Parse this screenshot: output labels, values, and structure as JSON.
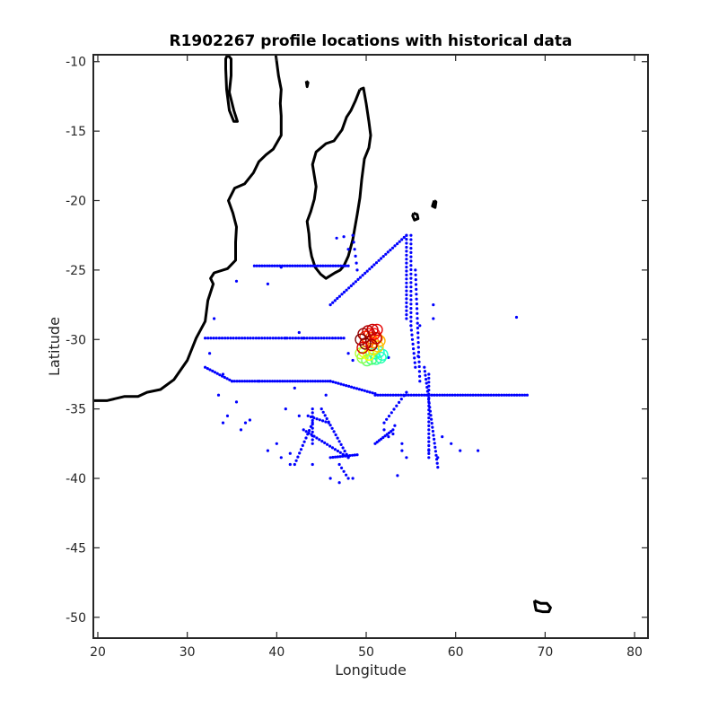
{
  "chart_data": {
    "type": "scatter",
    "title": "R1902267 profile locations with historical data",
    "xlabel": "Longitude",
    "ylabel": "Latitude",
    "xlim": [
      19.5,
      81.5
    ],
    "ylim": [
      -51.5,
      -9.5
    ],
    "xticks": [
      20,
      30,
      40,
      50,
      60,
      70,
      80
    ],
    "yticks": [
      -10,
      -15,
      -20,
      -25,
      -30,
      -35,
      -40,
      -45,
      -50
    ],
    "grid": false,
    "colors": {
      "historical": "#0000ff",
      "coast": "#000000",
      "profile_colormap": [
        "#00ffff",
        "#40ff80",
        "#ffff00",
        "#ff8000",
        "#ff0000",
        "#800000"
      ]
    },
    "coastline": [
      {
        "name": "africa",
        "points": [
          [
            19.5,
            -34.4
          ],
          [
            21,
            -34.4
          ],
          [
            23,
            -34.1
          ],
          [
            24.5,
            -34.1
          ],
          [
            25.5,
            -33.8
          ],
          [
            27,
            -33.6
          ],
          [
            28.5,
            -32.9
          ],
          [
            30,
            -31.5
          ],
          [
            31,
            -29.9
          ],
          [
            32,
            -28.7
          ],
          [
            32.3,
            -27.2
          ],
          [
            32.9,
            -26.0
          ],
          [
            32.6,
            -25.6
          ],
          [
            33,
            -25.2
          ],
          [
            34.5,
            -24.9
          ],
          [
            35.4,
            -24.3
          ],
          [
            35.4,
            -23.0
          ],
          [
            35.5,
            -21.9
          ],
          [
            35.1,
            -20.9
          ],
          [
            34.6,
            -20.0
          ],
          [
            35.3,
            -19.1
          ],
          [
            36.4,
            -18.8
          ],
          [
            37.4,
            -18.0
          ],
          [
            38.0,
            -17.2
          ],
          [
            38.8,
            -16.7
          ],
          [
            39.6,
            -16.3
          ],
          [
            40.5,
            -15.3
          ],
          [
            40.5,
            -13.9
          ],
          [
            40.4,
            -13.0
          ],
          [
            40.5,
            -12.0
          ],
          [
            40.2,
            -11.0
          ],
          [
            39.9,
            -9.5
          ]
        ]
      },
      {
        "name": "lake-malawi",
        "points": [
          [
            34.5,
            -9.5
          ],
          [
            34.9,
            -9.8
          ],
          [
            34.9,
            -11.0
          ],
          [
            34.7,
            -12.2
          ],
          [
            35.2,
            -13.5
          ],
          [
            35.6,
            -14.3
          ],
          [
            35.2,
            -14.3
          ],
          [
            34.7,
            -13.5
          ],
          [
            34.4,
            -12.0
          ],
          [
            34.3,
            -10.5
          ],
          [
            34.3,
            -9.8
          ],
          [
            34.5,
            -9.5
          ]
        ]
      },
      {
        "name": "madagascar",
        "points": [
          [
            49.3,
            -12.0
          ],
          [
            49.7,
            -11.9
          ],
          [
            50.0,
            -13.0
          ],
          [
            50.3,
            -14.3
          ],
          [
            50.5,
            -15.3
          ],
          [
            50.3,
            -16.2
          ],
          [
            49.8,
            -17.0
          ],
          [
            49.5,
            -18.5
          ],
          [
            49.3,
            -19.8
          ],
          [
            49.0,
            -21.0
          ],
          [
            48.5,
            -22.8
          ],
          [
            48.0,
            -24.0
          ],
          [
            47.5,
            -24.7
          ],
          [
            47.1,
            -25.0
          ],
          [
            46.5,
            -25.2
          ],
          [
            45.5,
            -25.6
          ],
          [
            44.9,
            -25.3
          ],
          [
            44.3,
            -24.8
          ],
          [
            43.9,
            -24.0
          ],
          [
            43.7,
            -23.3
          ],
          [
            43.6,
            -22.4
          ],
          [
            43.4,
            -21.5
          ],
          [
            43.8,
            -20.8
          ],
          [
            44.2,
            -19.9
          ],
          [
            44.4,
            -19.0
          ],
          [
            44.2,
            -18.2
          ],
          [
            44.0,
            -17.4
          ],
          [
            44.4,
            -16.5
          ],
          [
            45.5,
            -15.9
          ],
          [
            46.4,
            -15.7
          ],
          [
            47.3,
            -14.9
          ],
          [
            47.8,
            -14.0
          ],
          [
            48.3,
            -13.5
          ],
          [
            48.8,
            -12.8
          ],
          [
            49.3,
            -12.0
          ]
        ]
      },
      {
        "name": "comoros",
        "points": [
          [
            43.3,
            -11.4
          ],
          [
            43.5,
            -11.5
          ],
          [
            43.4,
            -11.8
          ],
          [
            43.3,
            -11.4
          ]
        ]
      },
      {
        "name": "reunion",
        "points": [
          [
            55.3,
            -20.9
          ],
          [
            55.7,
            -21.0
          ],
          [
            55.8,
            -21.3
          ],
          [
            55.4,
            -21.4
          ],
          [
            55.2,
            -21.1
          ],
          [
            55.3,
            -20.9
          ]
        ]
      },
      {
        "name": "mauritius",
        "points": [
          [
            57.6,
            -20.0
          ],
          [
            57.8,
            -20.1
          ],
          [
            57.7,
            -20.5
          ],
          [
            57.4,
            -20.4
          ],
          [
            57.6,
            -20.0
          ]
        ]
      },
      {
        "name": "kerguelen",
        "points": [
          [
            68.8,
            -48.8
          ],
          [
            69.5,
            -49.0
          ],
          [
            70.2,
            -49.0
          ],
          [
            70.6,
            -49.3
          ],
          [
            70.4,
            -49.6
          ],
          [
            69.7,
            -49.6
          ],
          [
            69.0,
            -49.5
          ],
          [
            68.9,
            -49.2
          ],
          [
            68.8,
            -48.8
          ]
        ]
      }
    ],
    "historical_tracks": [
      {
        "from": [
          37.5,
          -24.7
        ],
        "to": [
          48,
          -24.7
        ],
        "n": 38
      },
      {
        "from": [
          32,
          -29.9
        ],
        "to": [
          47.5,
          -29.9
        ],
        "n": 50
      },
      {
        "from": [
          32,
          -32
        ],
        "to": [
          35,
          -33
        ],
        "n": 12
      },
      {
        "from": [
          35,
          -33
        ],
        "to": [
          46,
          -33
        ],
        "n": 40
      },
      {
        "from": [
          46,
          -33
        ],
        "to": [
          51,
          -33.9
        ],
        "n": 18
      },
      {
        "from": [
          51,
          -34
        ],
        "to": [
          68,
          -34
        ],
        "n": 60
      },
      {
        "from": [
          46,
          -27.5
        ],
        "to": [
          54.5,
          -22.5
        ],
        "n": 34
      },
      {
        "from": [
          54.5,
          -22.5
        ],
        "to": [
          54.5,
          -28.5
        ],
        "n": 22
      },
      {
        "from": [
          55,
          -22.5
        ],
        "to": [
          55,
          -29
        ],
        "n": 22
      },
      {
        "from": [
          55.5,
          -25
        ],
        "to": [
          56,
          -33
        ],
        "n": 24
      },
      {
        "from": [
          56.5,
          -32
        ],
        "to": [
          58,
          -39.2
        ],
        "n": 26
      },
      {
        "from": [
          57,
          -32.5
        ],
        "to": [
          57,
          -38.5
        ],
        "n": 22
      },
      {
        "from": [
          52,
          -36
        ],
        "to": [
          54.5,
          -33.8
        ],
        "n": 10
      },
      {
        "from": [
          51,
          -37.5
        ],
        "to": [
          53,
          -36.5
        ],
        "n": 10
      },
      {
        "from": [
          48,
          -38.5
        ],
        "to": [
          45,
          -35
        ],
        "n": 16
      },
      {
        "from": [
          43,
          -36.5
        ],
        "to": [
          48,
          -38.5
        ],
        "n": 18
      },
      {
        "from": [
          46,
          -38.5
        ],
        "to": [
          49,
          -38.3
        ],
        "n": 12
      },
      {
        "from": [
          44,
          -36
        ],
        "to": [
          42,
          -39
        ],
        "n": 12
      },
      {
        "from": [
          44,
          -35
        ],
        "to": [
          44,
          -37.5
        ],
        "n": 10
      },
      {
        "from": [
          43.5,
          -35.5
        ],
        "to": [
          45.8,
          -36
        ],
        "n": 8
      },
      {
        "from": [
          47,
          -39
        ],
        "to": [
          48,
          -40
        ],
        "n": 5
      },
      {
        "from": [
          55,
          -29
        ],
        "to": [
          55.5,
          -32
        ],
        "n": 10
      },
      {
        "from": [
          48.5,
          -22.5
        ],
        "to": [
          49,
          -25
        ],
        "n": 6
      }
    ],
    "historical_points": [
      [
        35.5,
        -25.8
      ],
      [
        39,
        -26
      ],
      [
        48,
        -31
      ],
      [
        48.5,
        -31.5
      ],
      [
        52.5,
        -31.3
      ],
      [
        56,
        -29
      ],
      [
        57.5,
        -27.5
      ],
      [
        57.5,
        -28.5
      ],
      [
        66.8,
        -28.4
      ],
      [
        62.5,
        -38
      ],
      [
        60.5,
        -38
      ],
      [
        59.5,
        -37.5
      ],
      [
        58.5,
        -37
      ],
      [
        54,
        -37.5
      ],
      [
        54.5,
        -38.5
      ],
      [
        53,
        -36.8
      ],
      [
        53.2,
        -36.2
      ],
      [
        52.5,
        -37
      ],
      [
        48.5,
        -40
      ],
      [
        47,
        -40.3
      ],
      [
        46,
        -40
      ],
      [
        44,
        -39
      ],
      [
        41.5,
        -39
      ],
      [
        41.5,
        -38.2
      ],
      [
        40,
        -37.5
      ],
      [
        39,
        -38
      ],
      [
        37,
        -35.8
      ],
      [
        36.5,
        -36
      ],
      [
        35.5,
        -34.5
      ],
      [
        34.5,
        -35.5
      ],
      [
        34,
        -36
      ],
      [
        40.5,
        -38.5
      ],
      [
        42,
        -33.5
      ],
      [
        38,
        -33
      ],
      [
        33,
        -28.5
      ],
      [
        32.5,
        -31
      ],
      [
        34,
        -32.5
      ],
      [
        41,
        -35
      ],
      [
        42.5,
        -35.5
      ],
      [
        45.5,
        -34
      ],
      [
        53.5,
        -39.8
      ],
      [
        54,
        -38
      ],
      [
        57,
        -38
      ],
      [
        58,
        -38.5
      ],
      [
        33.5,
        -34
      ],
      [
        36,
        -36.5
      ],
      [
        40.5,
        -24.8
      ],
      [
        41,
        -29.9
      ],
      [
        42.5,
        -29.5
      ],
      [
        43,
        -29.9
      ],
      [
        48,
        -23.5
      ],
      [
        47.5,
        -22.6
      ],
      [
        46.7,
        -22.7
      ],
      [
        52,
        -36.5
      ],
      [
        55.8,
        -31.2
      ]
    ],
    "profile_points": [
      [
        50.9,
        -31.0,
        0.0
      ],
      [
        51.4,
        -30.9,
        0.04
      ],
      [
        51.8,
        -31.1,
        0.08
      ],
      [
        51.6,
        -31.3,
        0.12
      ],
      [
        51.1,
        -31.4,
        0.16
      ],
      [
        50.6,
        -31.4,
        0.2
      ],
      [
        50.1,
        -31.5,
        0.24
      ],
      [
        49.6,
        -31.3,
        0.28
      ],
      [
        49.4,
        -31.0,
        0.32
      ],
      [
        49.8,
        -30.9,
        0.36
      ],
      [
        50.3,
        -31.1,
        0.4
      ],
      [
        50.8,
        -30.7,
        0.44
      ],
      [
        51.3,
        -30.5,
        0.48
      ],
      [
        51.5,
        -30.1,
        0.52
      ],
      [
        51.2,
        -29.9,
        0.56
      ],
      [
        50.8,
        -30.2,
        0.6
      ],
      [
        50.5,
        -29.9,
        0.64
      ],
      [
        50.2,
        -30.2,
        0.68
      ],
      [
        49.9,
        -29.8,
        0.72
      ],
      [
        50.4,
        -29.6,
        0.76
      ],
      [
        50.9,
        -29.6,
        0.8
      ],
      [
        51.2,
        -29.3,
        0.84
      ],
      [
        50.7,
        -29.3,
        0.88
      ],
      [
        50.2,
        -29.4,
        0.92
      ],
      [
        49.7,
        -29.6,
        0.96
      ],
      [
        49.4,
        -30.0,
        1.0
      ],
      [
        49.9,
        -30.3,
        1.0
      ],
      [
        50.6,
        -30.4,
        0.94
      ],
      [
        51.1,
        -29.9,
        0.9
      ],
      [
        49.6,
        -30.6,
        0.86
      ]
    ]
  }
}
